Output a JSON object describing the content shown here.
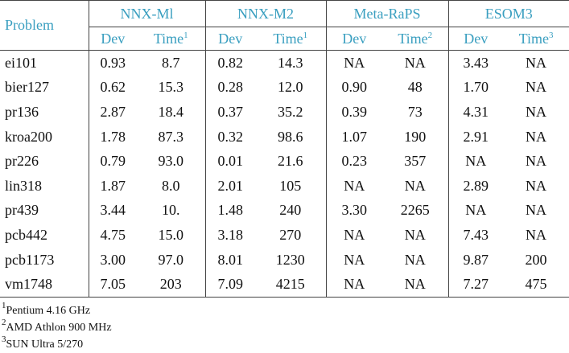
{
  "table": {
    "headers": [
      "Problem",
      "NNX-Ml",
      "NNX-M2",
      "Meta-RaPS",
      "ESOM3"
    ],
    "subheaders": [
      {
        "text": "Dev"
      },
      {
        "text": "Time",
        "note": "1"
      },
      {
        "text": "Dev"
      },
      {
        "text": "Time",
        "note": "1"
      },
      {
        "text": "Dev"
      },
      {
        "text": "Time",
        "note": "2"
      },
      {
        "text": "Dev"
      },
      {
        "text": "Time",
        "note": "3"
      }
    ],
    "rows": [
      [
        "ei101",
        "0.93",
        "8.7",
        "0.82",
        "14.3",
        "NA",
        "NA",
        "3.43",
        "NA"
      ],
      [
        "bier127",
        "0.62",
        "15.3",
        "0.28",
        "12.0",
        "0.90",
        "48",
        "1.70",
        "NA"
      ],
      [
        "pr136",
        "2.87",
        "18.4",
        "0.37",
        "35.2",
        "0.39",
        "73",
        "4.31",
        "NA"
      ],
      [
        "kroa200",
        "1.78",
        "87.3",
        "0.32",
        "98.6",
        "1.07",
        "190",
        "2.91",
        "NA"
      ],
      [
        "pr226",
        "0.79",
        "93.0",
        "0.01",
        "21.6",
        "0.23",
        "357",
        "NA",
        "NA"
      ],
      [
        "lin318",
        "1.87",
        "8.0",
        "2.01",
        "105",
        "NA",
        "NA",
        "2.89",
        "NA"
      ],
      [
        "pr439",
        "3.44",
        "10.",
        "1.48",
        "240",
        "3.30",
        "2265",
        "NA",
        "NA"
      ],
      [
        "pcb442",
        "4.75",
        "15.0",
        "3.18",
        "270",
        "NA",
        "NA",
        "7.43",
        "NA"
      ],
      [
        "pcb1173",
        "3.00",
        "97.0",
        "8.01",
        "1230",
        "NA",
        "NA",
        "9.87",
        "200"
      ],
      [
        "vm1748",
        "7.05",
        "203",
        "7.09",
        "4215",
        "NA",
        "NA",
        "7.27",
        "475"
      ]
    ]
  },
  "footnotes": [
    {
      "mark": "1",
      "text": "Pentium 4.16 GHz"
    },
    {
      "mark": "2",
      "text": "AMD Athlon 900 MHz"
    },
    {
      "mark": "3",
      "text": "SUN Ultra 5/270"
    }
  ]
}
